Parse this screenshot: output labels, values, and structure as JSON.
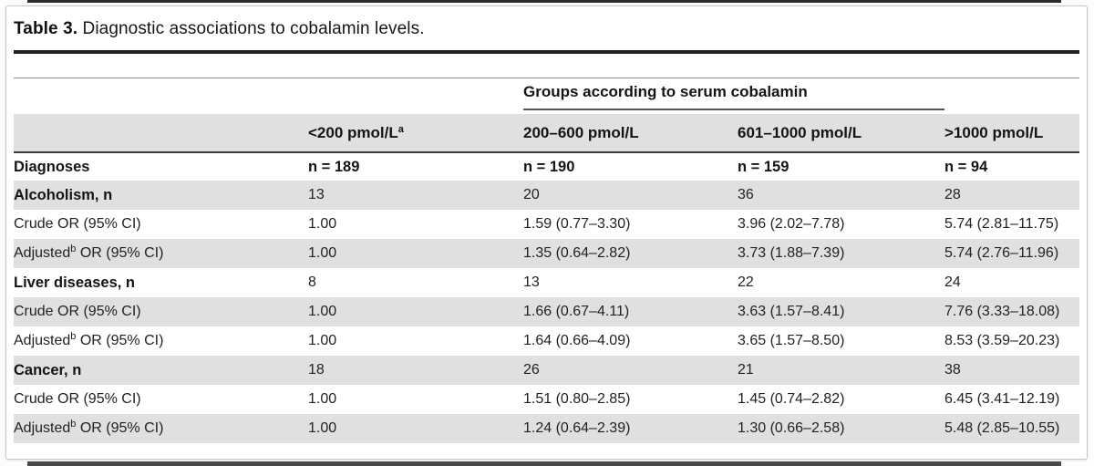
{
  "page": {
    "title_label": "Table 3.",
    "title_text": " Diagnostic associations to cobalamin levels."
  },
  "table": {
    "group_header": "Groups according to serum cobalamin",
    "col_headers": {
      "c1": "<200 pmol/L",
      "c1_sup": "a",
      "c2": "200–600 pmol/L",
      "c3": "601–1000 pmol/L",
      "c4": ">1000 pmol/L"
    },
    "diagnoses_row": {
      "label": "Diagnoses",
      "c1": "n = 189",
      "c2": "n = 190",
      "c3": "n = 159",
      "c4": "n = 94"
    },
    "rows": [
      {
        "label": "Alcoholism, n",
        "sup": "",
        "rest": "",
        "c1": "13",
        "c2": "20",
        "c3": "36",
        "c4": "28"
      },
      {
        "label": "Crude OR (95% CI)",
        "sup": "",
        "rest": "",
        "c1": "1.00",
        "c2": "1.59 (0.77–3.30)",
        "c3": "3.96 (2.02–7.78)",
        "c4": "5.74 (2.81–11.75)"
      },
      {
        "label": "Adjusted",
        "sup": "b",
        "rest": " OR (95% CI)",
        "c1": "1.00",
        "c2": "1.35 (0.64–2.82)",
        "c3": "3.73 (1.88–7.39)",
        "c4": "5.74 (2.76–11.96)"
      },
      {
        "label": "Liver diseases, n",
        "sup": "",
        "rest": "",
        "c1": "8",
        "c2": "13",
        "c3": "22",
        "c4": "24"
      },
      {
        "label": "Crude OR (95% CI)",
        "sup": "",
        "rest": "",
        "c1": "1.00",
        "c2": "1.66 (0.67–4.11)",
        "c3": "3.63 (1.57–8.41)",
        "c4": "7.76 (3.33–18.08)"
      },
      {
        "label": "Adjusted",
        "sup": "b",
        "rest": " OR (95% CI)",
        "c1": "1.00",
        "c2": "1.64 (0.66–4.09)",
        "c3": "3.65 (1.57–8.50)",
        "c4": "8.53 (3.59–20.23)"
      },
      {
        "label": "Cancer, n",
        "sup": "",
        "rest": "",
        "c1": "18",
        "c2": "26",
        "c3": "21",
        "c4": "38"
      },
      {
        "label": "Crude OR (95% CI)",
        "sup": "",
        "rest": "",
        "c1": "1.00",
        "c2": "1.51 (0.80–2.85)",
        "c3": "1.45 (0.74–2.82)",
        "c4": "6.45 (3.41–12.19)"
      },
      {
        "label": "Adjusted",
        "sup": "b",
        "rest": " OR (95% CI)",
        "c1": "1.00",
        "c2": "1.24 (0.64–2.39)",
        "c3": "1.30 (0.66–2.58)",
        "c4": "5.48 (2.85–10.55)"
      }
    ]
  },
  "colors": {
    "row_shade": "#e0e0e0",
    "rule_dark": "#212121",
    "rule_medium": "#545454",
    "card_border": "#c7c7c7"
  }
}
